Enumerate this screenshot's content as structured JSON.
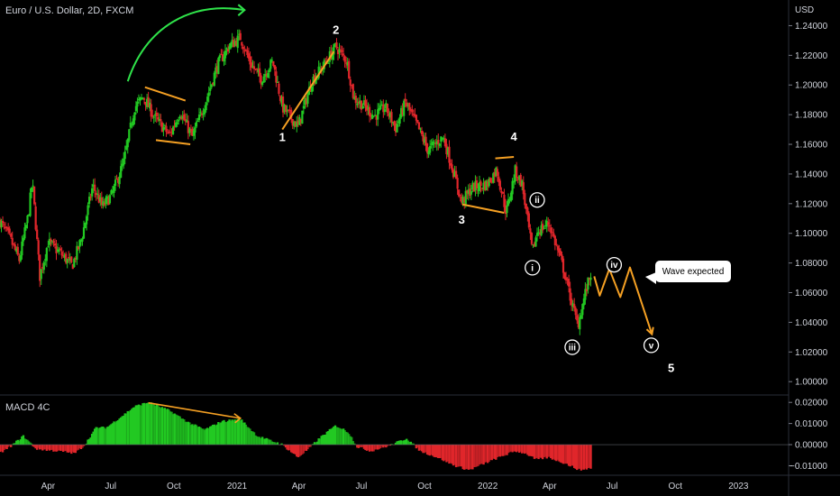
{
  "header": {
    "symbol": "Euro / U.S. Dollar, 2D, FXCM",
    "currency": "USD"
  },
  "indicator": {
    "name": "MACD 4C"
  },
  "callout": {
    "text": "Wave expected"
  },
  "colors": {
    "up": "#22c922",
    "down": "#e0262b",
    "annotation": "#f5a023",
    "arrow": "#2fe34a",
    "background": "#000000"
  },
  "wave_labels": [
    {
      "text": "1",
      "date": "2021-03-08",
      "price": 1.162
    },
    {
      "text": "2",
      "date": "2021-05-25",
      "price": 1.2345
    },
    {
      "text": "3",
      "date": "2021-11-24",
      "price": 1.1065
    },
    {
      "text": "4",
      "date": "2022-02-08",
      "price": 1.1625
    },
    {
      "text": "5",
      "date": "2022-09-25",
      "price": 1.0065
    }
  ],
  "circled_labels": [
    {
      "text": "i",
      "date": "2022-03-07",
      "price": 1.0768
    },
    {
      "text": "ii",
      "date": "2022-03-14",
      "price": 1.1225
    },
    {
      "text": "iii",
      "date": "2022-05-04",
      "price": 1.0232
    },
    {
      "text": "iv",
      "date": "2022-07-04",
      "price": 1.0788
    },
    {
      "text": "v",
      "date": "2022-08-27",
      "price": 1.0245
    }
  ],
  "chart_data": [
    {
      "type": "candlestick",
      "title": "Euro / U.S. Dollar, 2D, FXCM",
      "ylabel": "USD",
      "x_range": [
        "2020-01-22",
        "2023-03-15"
      ],
      "ylim": [
        0.991,
        1.2573
      ],
      "y_ticks": [
        1.0,
        1.02,
        1.04,
        1.06,
        1.08,
        1.1,
        1.12,
        1.14,
        1.16,
        1.18,
        1.2,
        1.22,
        1.24
      ],
      "x_ticks": [
        {
          "label": "Apr",
          "date": "2020-04-01"
        },
        {
          "label": "Jul",
          "date": "2020-07-01"
        },
        {
          "label": "Oct",
          "date": "2020-10-01"
        },
        {
          "label": "2021",
          "date": "2021-01-01"
        },
        {
          "label": "Apr",
          "date": "2021-04-01"
        },
        {
          "label": "Jul",
          "date": "2021-07-01"
        },
        {
          "label": "Oct",
          "date": "2021-10-01"
        },
        {
          "label": "2022",
          "date": "2022-01-01"
        },
        {
          "label": "Apr",
          "date": "2022-04-01"
        },
        {
          "label": "Jul",
          "date": "2022-07-01"
        },
        {
          "label": "Oct",
          "date": "2022-10-01"
        },
        {
          "label": "2023",
          "date": "2023-01-01"
        }
      ],
      "grid": false,
      "close_path": [
        [
          "2020-01-22",
          1.108
        ],
        [
          "2020-02-05",
          1.097
        ],
        [
          "2020-02-19",
          1.082
        ],
        [
          "2020-03-03",
          1.112
        ],
        [
          "2020-03-09",
          1.135
        ],
        [
          "2020-03-20",
          1.071
        ],
        [
          "2020-04-01",
          1.094
        ],
        [
          "2020-04-20",
          1.086
        ],
        [
          "2020-05-06",
          1.078
        ],
        [
          "2020-05-20",
          1.097
        ],
        [
          "2020-06-05",
          1.132
        ],
        [
          "2020-06-19",
          1.118
        ],
        [
          "2020-07-03",
          1.126
        ],
        [
          "2020-07-20",
          1.148
        ],
        [
          "2020-08-05",
          1.185
        ],
        [
          "2020-08-18",
          1.192
        ],
        [
          "2020-09-03",
          1.178
        ],
        [
          "2020-09-25",
          1.166
        ],
        [
          "2020-10-10",
          1.182
        ],
        [
          "2020-10-28",
          1.165
        ],
        [
          "2020-11-15",
          1.187
        ],
        [
          "2020-12-04",
          1.214
        ],
        [
          "2020-12-20",
          1.226
        ],
        [
          "2021-01-06",
          1.232
        ],
        [
          "2021-01-20",
          1.215
        ],
        [
          "2021-02-05",
          1.204
        ],
        [
          "2021-02-22",
          1.216
        ],
        [
          "2021-03-08",
          1.185
        ],
        [
          "2021-03-31",
          1.172
        ],
        [
          "2021-04-20",
          1.203
        ],
        [
          "2021-05-10",
          1.215
        ],
        [
          "2021-05-25",
          1.226
        ],
        [
          "2021-06-10",
          1.216
        ],
        [
          "2021-06-20",
          1.191
        ],
        [
          "2021-07-05",
          1.186
        ],
        [
          "2021-07-20",
          1.179
        ],
        [
          "2021-08-05",
          1.185
        ],
        [
          "2021-08-20",
          1.171
        ],
        [
          "2021-09-03",
          1.188
        ],
        [
          "2021-09-20",
          1.173
        ],
        [
          "2021-10-06",
          1.156
        ],
        [
          "2021-10-28",
          1.165
        ],
        [
          "2021-11-10",
          1.145
        ],
        [
          "2021-11-24",
          1.121
        ],
        [
          "2021-12-10",
          1.131
        ],
        [
          "2021-12-31",
          1.133
        ],
        [
          "2022-01-14",
          1.143
        ],
        [
          "2022-01-28",
          1.114
        ],
        [
          "2022-02-10",
          1.142
        ],
        [
          "2022-02-20",
          1.133
        ],
        [
          "2022-03-07",
          1.087
        ],
        [
          "2022-03-14",
          1.101
        ],
        [
          "2022-03-31",
          1.107
        ],
        [
          "2022-04-20",
          1.078
        ],
        [
          "2022-05-04",
          1.052
        ],
        [
          "2022-05-12",
          1.038
        ],
        [
          "2022-05-22",
          1.058
        ],
        [
          "2022-05-31",
          1.073
        ]
      ],
      "projection": [
        [
          "2022-06-05",
          1.071
        ],
        [
          "2022-06-13",
          1.058
        ],
        [
          "2022-06-27",
          1.076
        ],
        [
          "2022-07-13",
          1.057
        ],
        [
          "2022-07-27",
          1.077
        ],
        [
          "2022-08-28",
          1.032
        ]
      ]
    },
    {
      "type": "histogram",
      "title": "MACD 4C",
      "ylim": [
        -0.0145,
        0.0235
      ],
      "y_ticks": [
        0.02,
        0.01,
        0.0,
        -0.01
      ],
      "x_range": [
        "2020-01-22",
        "2023-03-15"
      ],
      "values_path": [
        [
          "2020-01-22",
          -0.004
        ],
        [
          "2020-02-10",
          0.0
        ],
        [
          "2020-02-25",
          0.004
        ],
        [
          "2020-03-15",
          -0.002
        ],
        [
          "2020-04-15",
          -0.003
        ],
        [
          "2020-05-10",
          -0.004
        ],
        [
          "2020-05-25",
          0.0
        ],
        [
          "2020-06-10",
          0.008
        ],
        [
          "2020-06-25",
          0.008
        ],
        [
          "2020-07-20",
          0.014
        ],
        [
          "2020-08-05",
          0.018
        ],
        [
          "2020-08-25",
          0.02
        ],
        [
          "2020-09-25",
          0.016
        ],
        [
          "2020-10-25",
          0.01
        ],
        [
          "2020-11-15",
          0.007
        ],
        [
          "2020-12-10",
          0.011
        ],
        [
          "2021-01-06",
          0.012
        ],
        [
          "2021-01-31",
          0.004
        ],
        [
          "2021-03-08",
          0.0
        ],
        [
          "2021-03-31",
          -0.006
        ],
        [
          "2021-04-15",
          -0.002
        ],
        [
          "2021-05-05",
          0.004
        ],
        [
          "2021-05-25",
          0.009
        ],
        [
          "2021-06-12",
          0.006
        ],
        [
          "2021-06-25",
          -0.001
        ],
        [
          "2021-07-15",
          -0.003
        ],
        [
          "2021-08-15",
          0.0
        ],
        [
          "2021-09-05",
          0.003
        ],
        [
          "2021-09-25",
          -0.003
        ],
        [
          "2021-10-20",
          -0.006
        ],
        [
          "2021-11-15",
          -0.01
        ],
        [
          "2021-12-05",
          -0.012
        ],
        [
          "2022-01-10",
          -0.007
        ],
        [
          "2022-02-10",
          -0.003
        ],
        [
          "2022-02-25",
          -0.004
        ],
        [
          "2022-03-12",
          -0.007
        ],
        [
          "2022-03-31",
          -0.006
        ],
        [
          "2022-04-25",
          -0.009
        ],
        [
          "2022-05-15",
          -0.012
        ],
        [
          "2022-05-31",
          -0.011
        ]
      ],
      "divergence_line": {
        "start": [
          "2020-08-25",
          0.0198
        ],
        "end": [
          "2021-01-06",
          0.0125
        ]
      }
    }
  ]
}
